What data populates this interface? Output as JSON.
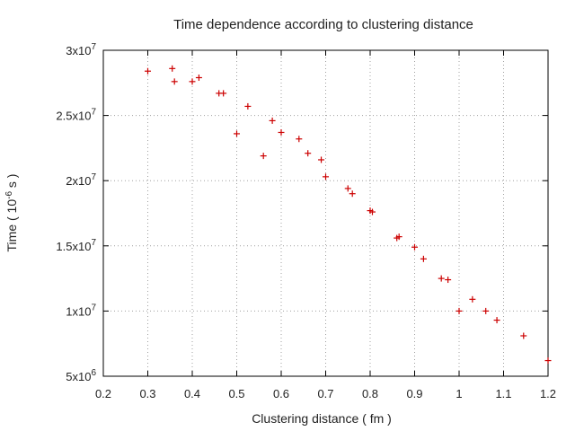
{
  "chart_data": {
    "type": "scatter",
    "title": "Time dependence according to clustering distance",
    "xlabel": "Clustering distance ( fm )",
    "ylabel": {
      "prefix": "Time ( 10",
      "exp": "-6",
      "suffix": " s )"
    },
    "xlim": [
      0.2,
      1.2
    ],
    "ylim": [
      5000000,
      30000000
    ],
    "grid": true,
    "x_ticks": [
      {
        "value": 0.2,
        "label": "0.2"
      },
      {
        "value": 0.3,
        "label": "0.3"
      },
      {
        "value": 0.4,
        "label": "0.4"
      },
      {
        "value": 0.5,
        "label": "0.5"
      },
      {
        "value": 0.6,
        "label": "0.6"
      },
      {
        "value": 0.7,
        "label": "0.7"
      },
      {
        "value": 0.8,
        "label": "0.8"
      },
      {
        "value": 0.9,
        "label": "0.9"
      },
      {
        "value": 1.0,
        "label": "1"
      },
      {
        "value": 1.1,
        "label": "1.1"
      },
      {
        "value": 1.2,
        "label": "1.2"
      }
    ],
    "y_ticks": [
      {
        "value": 5000000,
        "mant": "5x10",
        "exp": "6"
      },
      {
        "value": 10000000,
        "mant": "1x10",
        "exp": "7"
      },
      {
        "value": 15000000,
        "mant": "1.5x10",
        "exp": "7"
      },
      {
        "value": 20000000,
        "mant": "2x10",
        "exp": "7"
      },
      {
        "value": 25000000,
        "mant": "2.5x10",
        "exp": "7"
      },
      {
        "value": 30000000,
        "mant": "3x10",
        "exp": "7"
      }
    ],
    "marker": "+",
    "color": "#cc0000",
    "points": [
      {
        "x": 0.3,
        "y": 28400000
      },
      {
        "x": 0.355,
        "y": 28600000
      },
      {
        "x": 0.36,
        "y": 27600000
      },
      {
        "x": 0.4,
        "y": 27600000
      },
      {
        "x": 0.415,
        "y": 27900000
      },
      {
        "x": 0.46,
        "y": 26700000
      },
      {
        "x": 0.47,
        "y": 26700000
      },
      {
        "x": 0.5,
        "y": 23600000
      },
      {
        "x": 0.525,
        "y": 25700000
      },
      {
        "x": 0.56,
        "y": 21900000
      },
      {
        "x": 0.58,
        "y": 24600000
      },
      {
        "x": 0.6,
        "y": 23700000
      },
      {
        "x": 0.64,
        "y": 23200000
      },
      {
        "x": 0.66,
        "y": 22100000
      },
      {
        "x": 0.69,
        "y": 21600000
      },
      {
        "x": 0.7,
        "y": 20300000
      },
      {
        "x": 0.75,
        "y": 19400000
      },
      {
        "x": 0.76,
        "y": 19000000
      },
      {
        "x": 0.8,
        "y": 17700000
      },
      {
        "x": 0.805,
        "y": 17600000
      },
      {
        "x": 0.86,
        "y": 15600000
      },
      {
        "x": 0.865,
        "y": 15700000
      },
      {
        "x": 0.9,
        "y": 14900000
      },
      {
        "x": 0.92,
        "y": 14000000
      },
      {
        "x": 0.96,
        "y": 12500000
      },
      {
        "x": 0.975,
        "y": 12400000
      },
      {
        "x": 1.0,
        "y": 10000000
      },
      {
        "x": 1.03,
        "y": 10900000
      },
      {
        "x": 1.06,
        "y": 10000000
      },
      {
        "x": 1.085,
        "y": 9300000
      },
      {
        "x": 1.145,
        "y": 8100000
      },
      {
        "x": 1.2,
        "y": 6200000
      }
    ]
  }
}
